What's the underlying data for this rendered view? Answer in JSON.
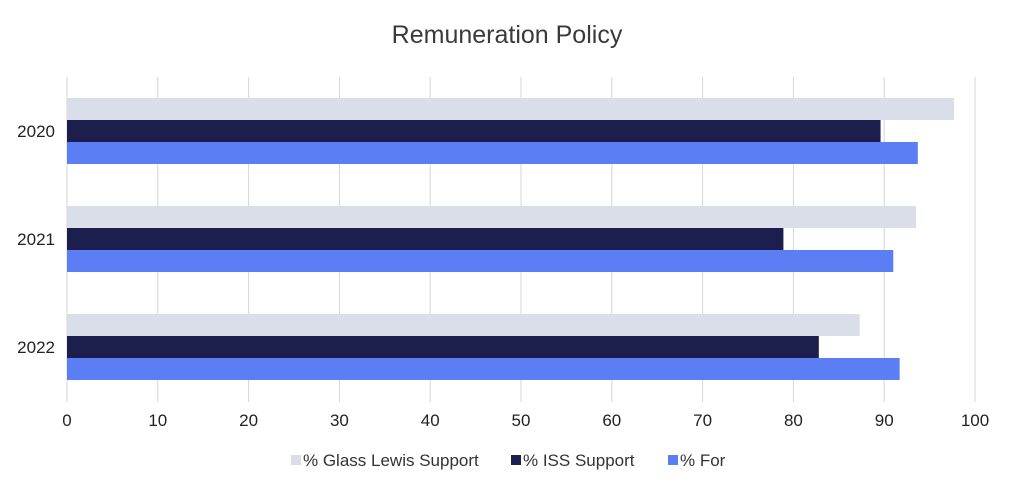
{
  "chart_data": {
    "type": "bar",
    "orientation": "horizontal",
    "title": "Remuneration Policy",
    "categories": [
      "2020",
      "2021",
      "2022"
    ],
    "series": [
      {
        "name": "% Glass Lewis Support",
        "values": [
          97.7,
          93.5,
          87.3
        ],
        "color": "#d9dee8"
      },
      {
        "name": "% ISS Support",
        "values": [
          89.6,
          78.9,
          82.8
        ],
        "color": "#1c1f4d"
      },
      {
        "name": "% For",
        "values": [
          93.7,
          91.0,
          91.7
        ],
        "color": "#5b7ef5"
      }
    ],
    "xlim": [
      0,
      100
    ],
    "x_ticks": [
      0,
      10,
      20,
      30,
      40,
      50,
      60,
      70,
      80,
      90,
      100
    ],
    "grid": true,
    "legend_position": "bottom"
  }
}
